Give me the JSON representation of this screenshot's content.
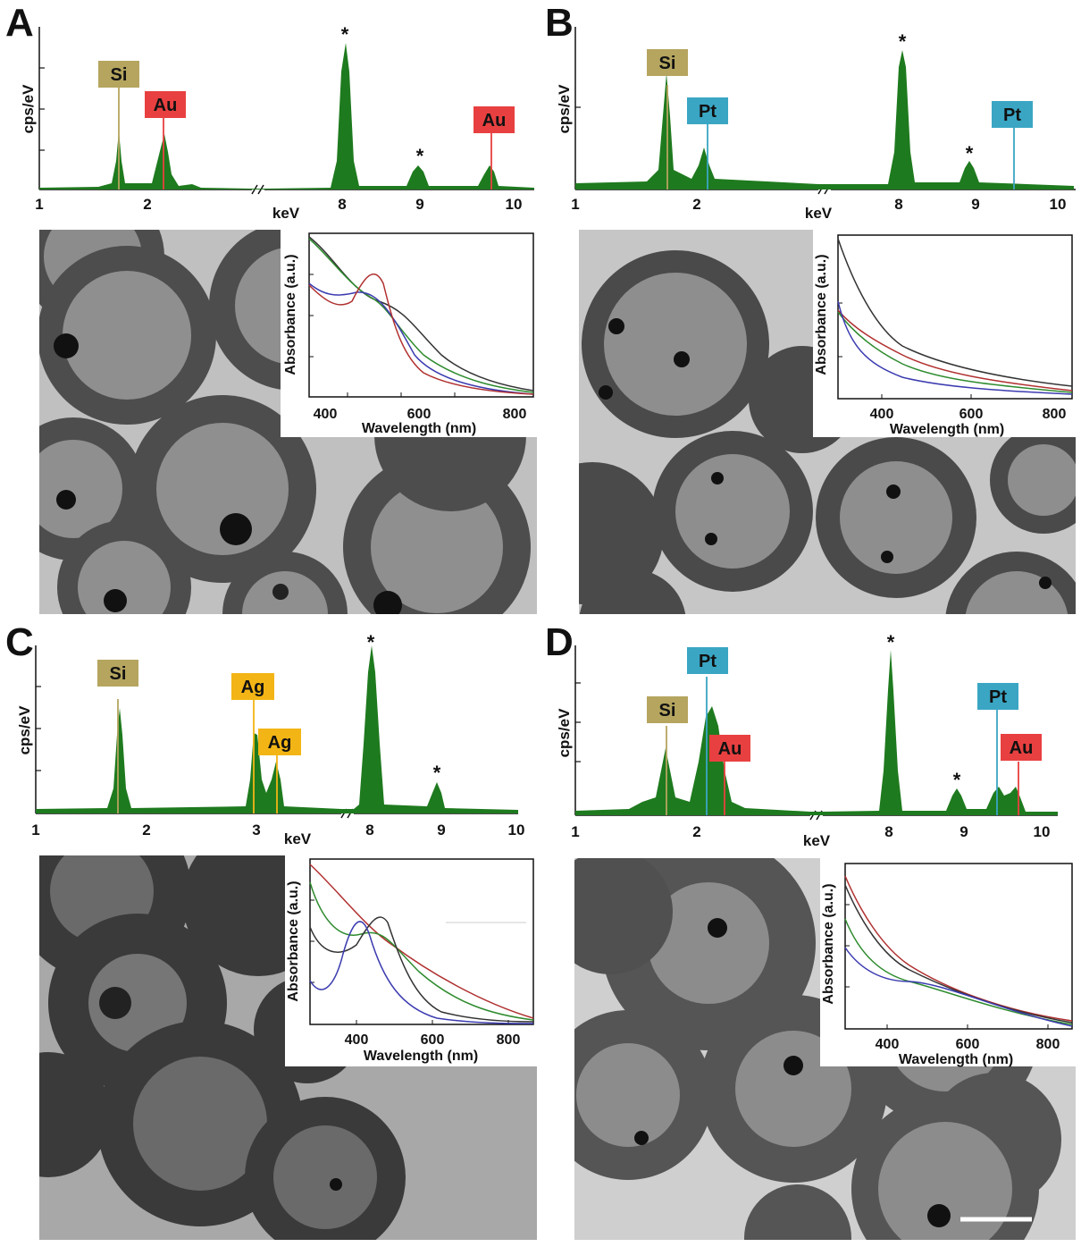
{
  "figure": {
    "panels": [
      {
        "letter": "A",
        "eds": {
          "ylabel": "cps/eV",
          "xlabel": "keV",
          "ticks_left": [
            "1",
            "2"
          ],
          "ticks_right": [
            "8",
            "9",
            "10"
          ],
          "labels": [
            {
              "text": "Si",
              "color": "#b5a55f"
            },
            {
              "text": "Au",
              "color": "#e84040"
            },
            {
              "text": "Au",
              "color": "#e84040"
            }
          ],
          "stars": [
            "*",
            "*"
          ]
        },
        "inset": {
          "ylabel": "Absorbance (a.u.)",
          "xlabel": "Wavelength (nm)",
          "xticks": [
            "400",
            "600",
            "800"
          ]
        }
      },
      {
        "letter": "B",
        "eds": {
          "ylabel": "cps/eV",
          "xlabel": "keV",
          "ticks_left": [
            "1",
            "2"
          ],
          "ticks_right": [
            "8",
            "9",
            "10"
          ],
          "labels": [
            {
              "text": "Si",
              "color": "#b5a55f"
            },
            {
              "text": "Pt",
              "color": "#3aa6c4"
            },
            {
              "text": "Pt",
              "color": "#3aa6c4"
            }
          ],
          "stars": [
            "*",
            "*"
          ]
        },
        "inset": {
          "ylabel": "Absorbance (a.u.)",
          "xlabel": "Wavelength (nm)",
          "xticks": [
            "400",
            "600",
            "800"
          ]
        }
      },
      {
        "letter": "C",
        "eds": {
          "ylabel": "cps/eV",
          "xlabel": "keV",
          "ticks_left": [
            "1",
            "2",
            "3"
          ],
          "ticks_right": [
            "8",
            "9",
            "10"
          ],
          "labels": [
            {
              "text": "Si",
              "color": "#b5a55f"
            },
            {
              "text": "Ag",
              "color": "#f3b515"
            },
            {
              "text": "Ag",
              "color": "#f3b515"
            }
          ],
          "stars": [
            "*",
            "*"
          ]
        },
        "inset": {
          "ylabel": "Absorbance (a.u.)",
          "xlabel": "Wavelength (nm)",
          "xticks": [
            "400",
            "600",
            "800"
          ]
        }
      },
      {
        "letter": "D",
        "eds": {
          "ylabel": "cps/eV",
          "xlabel": "keV",
          "ticks_left": [
            "1",
            "2"
          ],
          "ticks_right": [
            "8",
            "9",
            "10"
          ],
          "labels": [
            {
              "text": "Si",
              "color": "#b5a55f"
            },
            {
              "text": "Pt",
              "color": "#3aa6c4"
            },
            {
              "text": "Au",
              "color": "#e84040"
            },
            {
              "text": "Pt",
              "color": "#3aa6c4"
            },
            {
              "text": "Au",
              "color": "#e84040"
            }
          ],
          "stars": [
            "*",
            "*"
          ]
        },
        "inset": {
          "ylabel": "Absorbance (a.u.)",
          "xlabel": "Wavelength (nm)",
          "xticks": [
            "400",
            "600",
            "800"
          ]
        }
      }
    ],
    "colors": {
      "spectrum_fill": "#1e7a1e",
      "curve_black": "#333333",
      "curve_red": "#b03030",
      "curve_green": "#2e8b2e",
      "curve_blue": "#3b3bb0"
    }
  }
}
